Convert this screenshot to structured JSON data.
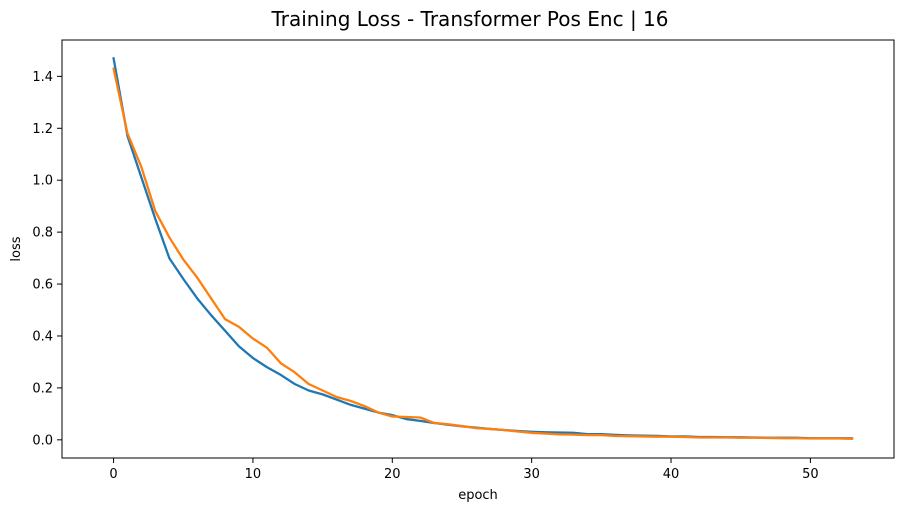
{
  "chart_data": {
    "type": "line",
    "title": "Training Loss - Transformer Pos Enc | 16",
    "xlabel": "epoch",
    "ylabel": "loss",
    "xlim": [
      -3.7,
      56.0
    ],
    "ylim": [
      -0.07,
      1.54
    ],
    "xticks": [
      0,
      10,
      20,
      30,
      40,
      50
    ],
    "yticks": [
      0.0,
      0.2,
      0.4,
      0.6,
      0.8,
      1.0,
      1.2,
      1.4
    ],
    "ytick_labels": [
      "0.0",
      "0.2",
      "0.4",
      "0.6",
      "0.8",
      "1.0",
      "1.2",
      "1.4"
    ],
    "grid": false,
    "legend": "none",
    "x": [
      0,
      1,
      2,
      3,
      4,
      5,
      6,
      7,
      8,
      9,
      10,
      11,
      12,
      13,
      14,
      15,
      16,
      17,
      18,
      19,
      20,
      21,
      22,
      23,
      24,
      25,
      26,
      27,
      28,
      29,
      30,
      31,
      32,
      33,
      34,
      35,
      36,
      37,
      38,
      39,
      40,
      41,
      42,
      43,
      44,
      45,
      46,
      47,
      48,
      49,
      50,
      51,
      52,
      53
    ],
    "series": [
      {
        "color": "#1f77b4",
        "values": [
          1.47,
          1.17,
          1.01,
          0.85,
          0.7,
          0.62,
          0.545,
          0.48,
          0.42,
          0.36,
          0.315,
          0.28,
          0.25,
          0.215,
          0.19,
          0.175,
          0.155,
          0.135,
          0.12,
          0.105,
          0.095,
          0.08,
          0.073,
          0.065,
          0.058,
          0.052,
          0.047,
          0.042,
          0.038,
          0.034,
          0.031,
          0.029,
          0.028,
          0.027,
          0.022,
          0.022,
          0.019,
          0.017,
          0.016,
          0.015,
          0.013,
          0.013,
          0.011,
          0.011,
          0.01,
          0.01,
          0.009,
          0.008,
          0.008,
          0.008,
          0.006,
          0.006,
          0.006,
          0.006
        ]
      },
      {
        "color": "#ff7f0e",
        "values": [
          1.43,
          1.18,
          1.05,
          0.88,
          0.78,
          0.695,
          0.625,
          0.545,
          0.465,
          0.435,
          0.39,
          0.355,
          0.295,
          0.26,
          0.215,
          0.19,
          0.165,
          0.15,
          0.13,
          0.105,
          0.09,
          0.088,
          0.086,
          0.065,
          0.06,
          0.053,
          0.045,
          0.042,
          0.038,
          0.032,
          0.027,
          0.024,
          0.021,
          0.02,
          0.018,
          0.018,
          0.015,
          0.014,
          0.013,
          0.012,
          0.012,
          0.011,
          0.009,
          0.009,
          0.009,
          0.008,
          0.008,
          0.007,
          0.006,
          0.006,
          0.005,
          0.005,
          0.005,
          0.004
        ]
      }
    ]
  }
}
